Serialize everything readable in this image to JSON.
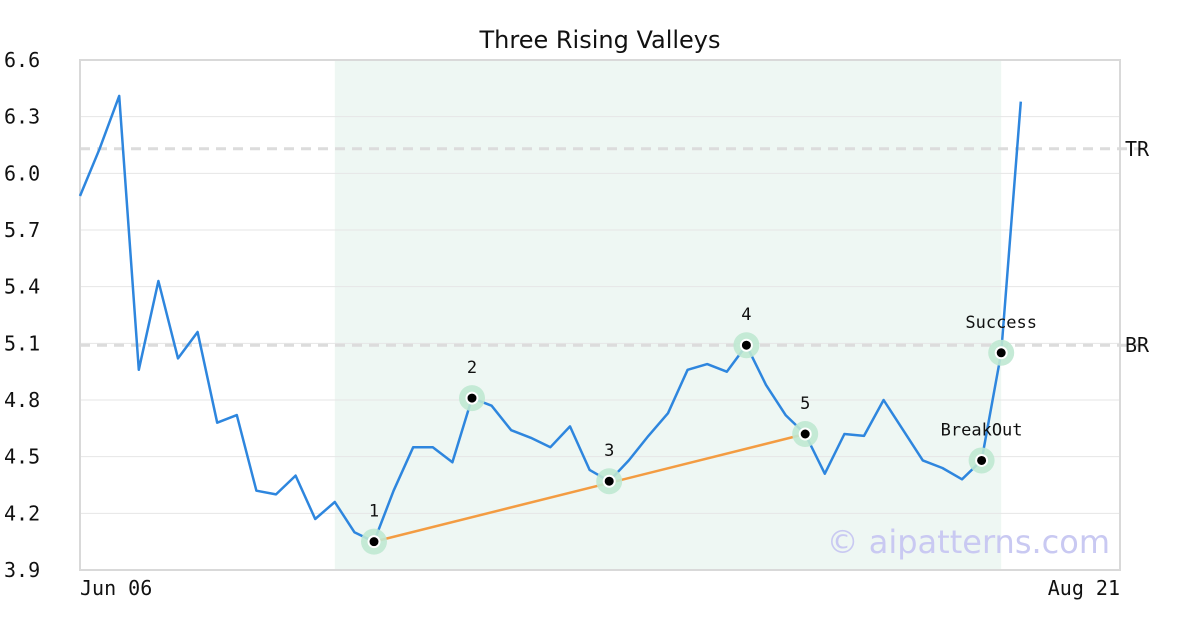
{
  "chart_data": {
    "type": "line",
    "title": "Three Rising Valleys",
    "xlabel": "",
    "ylabel": "",
    "ylim": [
      3.9,
      6.6
    ],
    "yticks": [
      "3.9",
      "4.2",
      "4.5",
      "4.8",
      "5.1",
      "5.4",
      "5.7",
      "6.0",
      "6.3",
      "6.6"
    ],
    "x_tick_labels": [
      "Jun 06",
      "Aug 21"
    ],
    "grid": true,
    "watermark": "© aipatterns.com",
    "colors": {
      "line": "#2e86de",
      "support_line": "#f39c42",
      "highlight_band": "#eef7f3",
      "marker_halo": "#bfe8d2",
      "grid": "#e6e6e6",
      "level_line": "#dcdcdc",
      "watermark": "#c9c9f2"
    },
    "series": [
      {
        "values": [
          5.88,
          6.13,
          6.41,
          4.96,
          5.43,
          5.02,
          5.16,
          4.68,
          4.72,
          4.32,
          4.3,
          4.4,
          4.17,
          4.26,
          4.1,
          4.05,
          4.32,
          4.55,
          4.55,
          4.47,
          4.81,
          4.77,
          4.64,
          4.6,
          4.55,
          4.66,
          4.43,
          4.37,
          4.48,
          4.61,
          4.73,
          4.96,
          4.99,
          4.95,
          5.09,
          4.88,
          4.72,
          4.62,
          4.41,
          4.62,
          4.61,
          4.8,
          4.64,
          4.48,
          4.44,
          4.38,
          4.48,
          5.05,
          6.38
        ]
      }
    ],
    "highlight_range": [
      13,
      47
    ],
    "levels": [
      {
        "label": "TR",
        "value": 6.13
      },
      {
        "label": "BR",
        "value": 5.09
      }
    ],
    "support_line": {
      "from_index": 15,
      "to_index": 37
    },
    "annotations": [
      {
        "index": 15,
        "label": "1"
      },
      {
        "index": 20,
        "label": "2"
      },
      {
        "index": 27,
        "label": "3"
      },
      {
        "index": 34,
        "label": "4"
      },
      {
        "index": 37,
        "label": "5"
      },
      {
        "index": 46,
        "label": "BreakOut"
      },
      {
        "index": 47,
        "label": "Success"
      }
    ]
  }
}
